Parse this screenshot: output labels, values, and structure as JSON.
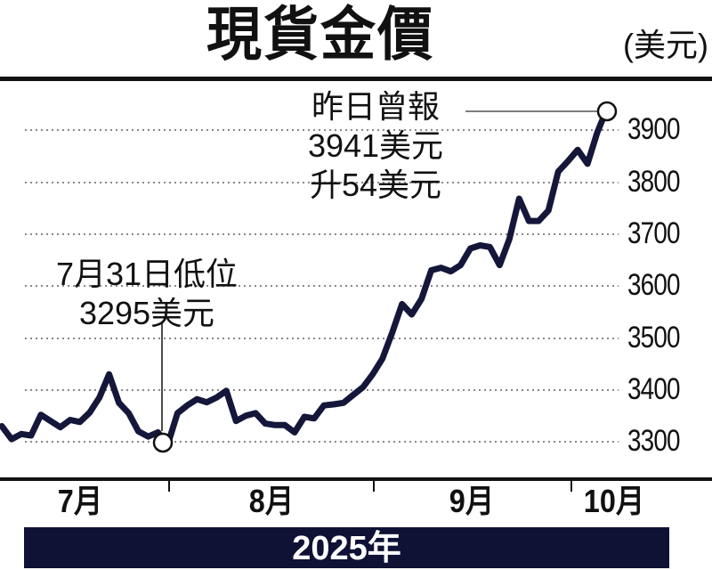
{
  "header": {
    "title": "現貨金價",
    "unit": "(美元)"
  },
  "annotations": {
    "high": {
      "line1": "昨日曾報",
      "line2": "3941美元",
      "line3": "升54美元"
    },
    "low": {
      "line1": "7月31日低位",
      "line2": "3295美元"
    }
  },
  "y_axis": {
    "ticks": [
      "3900",
      "3800",
      "3700",
      "3600",
      "3500",
      "3400",
      "3300"
    ]
  },
  "x_axis": {
    "months": [
      "7月",
      "8月",
      "9月",
      "10月"
    ],
    "year": "2025年"
  },
  "colors": {
    "line": "#14163a",
    "band": "#0f1235",
    "grid": "#888888",
    "text": "#111111"
  },
  "chart_data": {
    "type": "line",
    "title": "現貨金價",
    "ylabel": "美元",
    "xlabel": "2025年",
    "x_tick_labels": [
      "7月",
      "8月",
      "9月",
      "10月"
    ],
    "y_tick_labels": [
      3300,
      3400,
      3500,
      3600,
      3700,
      3800,
      3900
    ],
    "ylim": [
      3260,
      3960
    ],
    "grid": "horizontal dotted",
    "legend": "none",
    "annotations": [
      {
        "text": "7月31日低位 3295美元",
        "value": 3295,
        "date": "2025-07-31"
      },
      {
        "text": "昨日曾報 3941美元 升54美元",
        "value": 3941
      }
    ],
    "series": [
      {
        "name": "現貨金價",
        "values": [
          3330,
          3305,
          3315,
          3312,
          3352,
          3340,
          3328,
          3342,
          3338,
          3356,
          3385,
          3430,
          3375,
          3355,
          3320,
          3310,
          3318,
          3295,
          3355,
          3370,
          3382,
          3376,
          3385,
          3398,
          3340,
          3350,
          3355,
          3335,
          3332,
          3332,
          3318,
          3348,
          3345,
          3370,
          3372,
          3375,
          3390,
          3405,
          3430,
          3460,
          3510,
          3565,
          3545,
          3575,
          3630,
          3635,
          3628,
          3640,
          3672,
          3678,
          3675,
          3640,
          3690,
          3768,
          3725,
          3725,
          3745,
          3820,
          3840,
          3862,
          3835,
          3895,
          3941
        ]
      }
    ]
  }
}
